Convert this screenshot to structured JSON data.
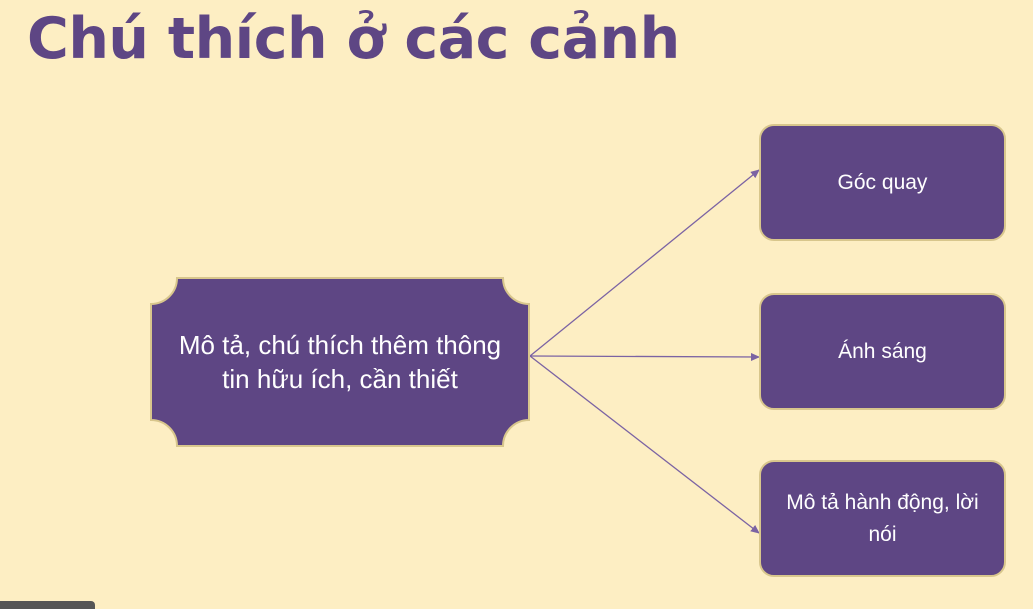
{
  "title": "Chú thích ở các cảnh",
  "diagram": {
    "source": "Mô tả, chú thích thêm thông tin hữu ích, cần thiết",
    "targets": [
      "Góc quay",
      "Ánh sáng",
      "Mô tả hành động, lời nói"
    ]
  },
  "colors": {
    "background": "#fdeec3",
    "box_fill": "#5e4684",
    "box_border": "#d8c68c",
    "connector": "#7b63a3",
    "text_on_box": "#ffffff"
  }
}
